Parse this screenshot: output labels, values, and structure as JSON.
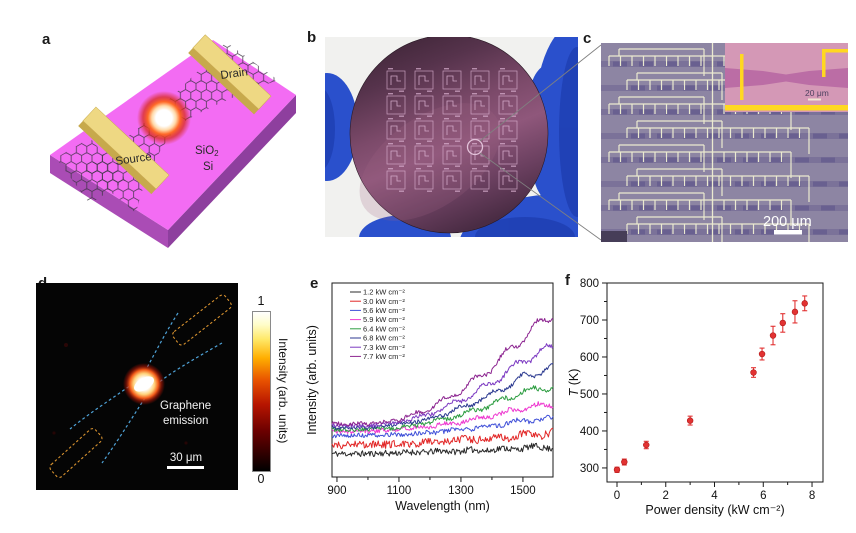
{
  "panel_a": {
    "label": "a",
    "drain": "Drain",
    "source": "Source",
    "sio": "SiO",
    "sio_sub": "2",
    "si": "Si"
  },
  "panel_b": {
    "label": "b"
  },
  "panel_c": {
    "label": "c",
    "scale_bar": "200 μm",
    "inset_scale_bar": "20 μm"
  },
  "panel_d": {
    "label": "d",
    "annotation_line1": "Graphene",
    "annotation_line2": "emission",
    "scale_bar": "30 μm",
    "colorbar": {
      "max": "1",
      "min": "0",
      "title": "Intensity (arb. units)"
    }
  },
  "panel_e": {
    "label": "e"
  },
  "panel_f": {
    "label": "f"
  },
  "colors": {
    "emission_red": "#e23030",
    "wafer_purple": "#7c4468",
    "glove_blue": "#2a50cc",
    "gold": "#eed883",
    "substrate_pink": "#f36cf3",
    "dash_blue": "#4fa3d8",
    "dash_orange": "#d8922f"
  },
  "chart_data": [
    {
      "id": "spectra",
      "type": "line",
      "xlabel": "Wavelength (nm)",
      "ylabel": "Intensity (arb. units)",
      "xlim": [
        884,
        1597
      ],
      "xticks": [
        900,
        1100,
        1300,
        1500
      ],
      "xticks_minor": [
        1000,
        1200,
        1400
      ],
      "ylim": [
        0,
        1
      ],
      "grid": false,
      "legend_position": "top-left",
      "anchors_x": [
        884,
        1000,
        1100,
        1200,
        1300,
        1400,
        1500,
        1597
      ],
      "series": [
        {
          "name": "1.2 kW cm⁻²",
          "color": "#2b2b2b",
          "noise": 0.016,
          "values": [
            0.12,
            0.12,
            0.125,
            0.13,
            0.135,
            0.14,
            0.15,
            0.155
          ]
        },
        {
          "name": "3.0 kW cm⁻²",
          "color": "#e22828",
          "noise": 0.02,
          "values": [
            0.165,
            0.165,
            0.17,
            0.18,
            0.19,
            0.2,
            0.215,
            0.225
          ]
        },
        {
          "name": "5.6 kW cm⁻²",
          "color": "#4050d8",
          "noise": 0.012,
          "values": [
            0.215,
            0.215,
            0.22,
            0.23,
            0.245,
            0.265,
            0.29,
            0.3
          ]
        },
        {
          "name": "5.9 kW cm⁻²",
          "color": "#ee3ad0",
          "noise": 0.012,
          "values": [
            0.235,
            0.235,
            0.245,
            0.26,
            0.285,
            0.315,
            0.355,
            0.375
          ]
        },
        {
          "name": "6.4 kW cm⁻²",
          "color": "#2f9e43",
          "noise": 0.011,
          "values": [
            0.245,
            0.245,
            0.255,
            0.28,
            0.32,
            0.375,
            0.44,
            0.465
          ]
        },
        {
          "name": "6.8 kW cm⁻²",
          "color": "#2c3a90",
          "noise": 0.01,
          "values": [
            0.255,
            0.255,
            0.27,
            0.3,
            0.355,
            0.425,
            0.515,
            0.565
          ]
        },
        {
          "name": "7.3 kW cm⁻²",
          "color": "#7c3ac2",
          "noise": 0.01,
          "values": [
            0.265,
            0.265,
            0.28,
            0.325,
            0.395,
            0.485,
            0.6,
            0.67
          ]
        },
        {
          "name": "7.7 kW cm⁻²",
          "color": "#8c2490",
          "noise": 0.01,
          "values": [
            0.275,
            0.275,
            0.295,
            0.355,
            0.445,
            0.565,
            0.72,
            0.845
          ]
        }
      ]
    },
    {
      "id": "temperature",
      "type": "scatter",
      "xlabel": "Power density (kW cm⁻²)",
      "ylabel": "T (K)",
      "ylabel_italic_part": "T",
      "xlim": [
        -0.41,
        8.45
      ],
      "ylim": [
        262,
        800
      ],
      "xticks": [
        0,
        2,
        4,
        6,
        8
      ],
      "xticks_minor": [
        1,
        3,
        5,
        7
      ],
      "yticks": [
        300,
        400,
        500,
        600,
        700,
        800
      ],
      "yticks_minor": [
        350,
        450,
        550,
        650,
        750
      ],
      "marker_color": "#e23232",
      "marker_edge": "#b01818",
      "points": [
        {
          "x": 0.0,
          "T": 295,
          "err": 7
        },
        {
          "x": 0.3,
          "T": 316,
          "err": 8
        },
        {
          "x": 1.2,
          "T": 362,
          "err": 10
        },
        {
          "x": 3.0,
          "T": 428,
          "err": 12
        },
        {
          "x": 5.6,
          "T": 558,
          "err": 13
        },
        {
          "x": 5.95,
          "T": 608,
          "err": 16
        },
        {
          "x": 6.4,
          "T": 658,
          "err": 25
        },
        {
          "x": 6.8,
          "T": 692,
          "err": 25
        },
        {
          "x": 7.3,
          "T": 722,
          "err": 30
        },
        {
          "x": 7.7,
          "T": 745,
          "err": 20
        }
      ]
    }
  ]
}
